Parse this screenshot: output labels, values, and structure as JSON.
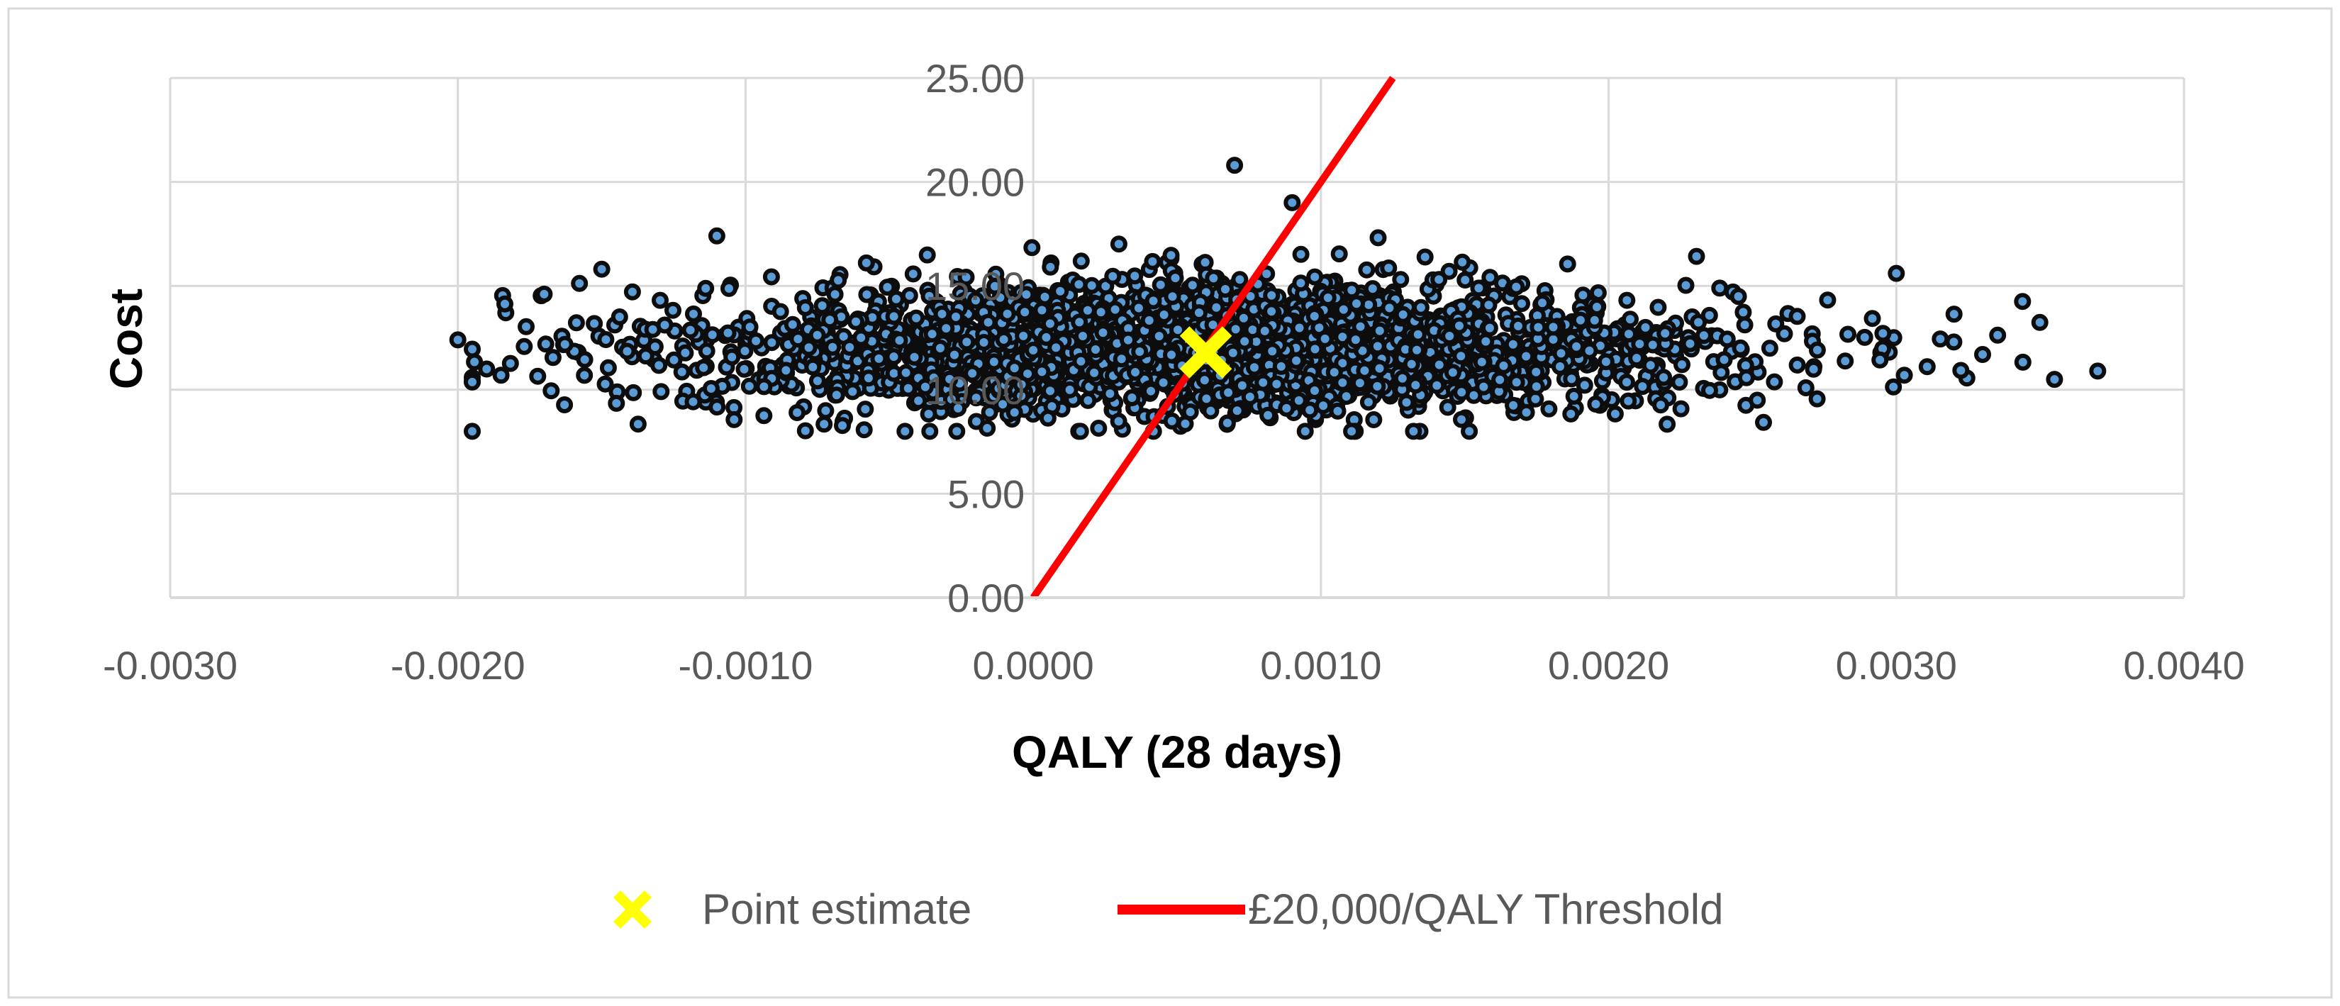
{
  "chart_data": {
    "type": "scatter",
    "title": "",
    "xlabel": "QALY (28 days)",
    "ylabel": "Cost",
    "xlim": [
      -0.003,
      0.004
    ],
    "ylim": [
      0,
      25
    ],
    "x_ticks": [
      "-0.0030",
      "-0.0020",
      "-0.0010",
      "0.0000",
      "0.0010",
      "0.0020",
      "0.0030",
      "0.0040"
    ],
    "y_ticks": [
      "0.00",
      "5.00",
      "10.00",
      "15.00",
      "20.00",
      "25.00"
    ],
    "grid": true,
    "legend_position": "bottom",
    "colors": {
      "scatter_fill": "#5b9bd5",
      "scatter_edge": "#0d0d0d",
      "point_estimate": "#ffff00",
      "threshold": "#ff0000",
      "grid": "#d9d9d9",
      "frame": "#d9d9d9"
    },
    "simulation_summary": {
      "approx_count": 2500,
      "x_mean": 0.0006,
      "x_sd": 0.0009,
      "y_mean": 12.0,
      "y_sd": 1.6
    },
    "outliers": [
      {
        "x": -0.002,
        "y": 12.4
      },
      {
        "x": -0.0019,
        "y": 11.0
      },
      {
        "x": -0.00185,
        "y": 10.7
      },
      {
        "x": -0.0017,
        "y": 14.6
      },
      {
        "x": -0.0015,
        "y": 15.8
      },
      {
        "x": -0.0011,
        "y": 17.4
      },
      {
        "x": 0.0007,
        "y": 20.8
      },
      {
        "x": 0.0009,
        "y": 19.0
      },
      {
        "x": 0.003,
        "y": 15.6
      },
      {
        "x": 0.0032,
        "y": 12.3
      },
      {
        "x": 0.0033,
        "y": 11.7
      },
      {
        "x": 0.00355,
        "y": 10.5
      },
      {
        "x": 0.0037,
        "y": 10.9
      }
    ],
    "series": [
      {
        "name": "Point estimate",
        "type": "scatter",
        "points": [
          {
            "x": 0.0006,
            "y": 11.8
          }
        ]
      },
      {
        "name": "£20,000/QALY Threshold",
        "type": "line",
        "points": [
          {
            "x": 0.0,
            "y": 0.0
          },
          {
            "x": 0.00125,
            "y": 25.0
          }
        ]
      }
    ]
  }
}
